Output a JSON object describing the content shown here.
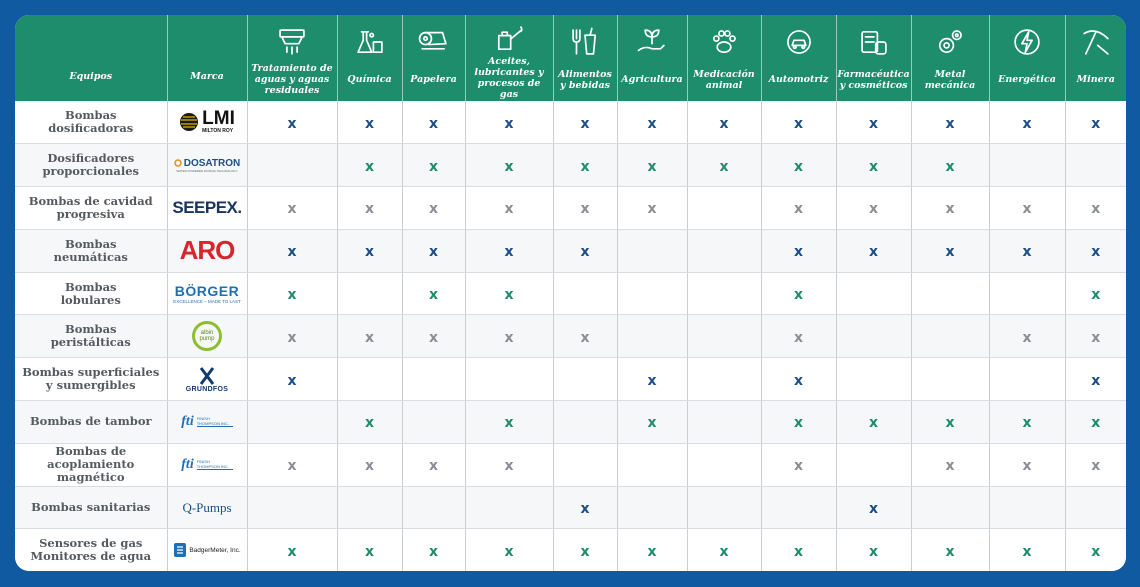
{
  "colors": {
    "blue": "#1c4f87",
    "green": "#1e8d6b",
    "gray": "#8a8f96",
    "header": "#1e8d6b",
    "frame": "#0f5aa1"
  },
  "header": {
    "equipos": "Equipos",
    "marca": "Marca",
    "columns": [
      {
        "label": "Tratamiento de aguas y aguas residuales",
        "icon": "water-treatment-icon"
      },
      {
        "label": "Química",
        "icon": "chemistry-flask-icon"
      },
      {
        "label": "Papelera",
        "icon": "paper-roll-icon"
      },
      {
        "label": "Aceites, lubricantes y procesos de gas",
        "icon": "oil-can-icon"
      },
      {
        "label": "Alimentos y bebidas",
        "icon": "food-drink-icon"
      },
      {
        "label": "Agricultura",
        "icon": "plant-hand-icon"
      },
      {
        "label": "Medicación animal",
        "icon": "paw-icon"
      },
      {
        "label": "Automotriz",
        "icon": "car-gear-icon"
      },
      {
        "label": "Farmacéutica y cosméticos",
        "icon": "pharma-icon"
      },
      {
        "label": "Metal mecánica",
        "icon": "gears-icon"
      },
      {
        "label": "Energética",
        "icon": "energy-bolt-icon"
      },
      {
        "label": "Minera",
        "icon": "pickaxe-icon"
      }
    ]
  },
  "mark_symbol": "x",
  "brands": {
    "lmi": {
      "main": "LMI",
      "sub": "MILTON ROY"
    },
    "dosatron": {
      "main": "DOSATRON",
      "sub": "WATER POWERED DOSING TECHNOLOGY"
    },
    "seepex": {
      "main": "SEEPEX."
    },
    "aro": {
      "main": "ARO"
    },
    "borger": {
      "main": "BÖRGER",
      "sub": "EXCELLENCE – MADE TO LAST"
    },
    "albin": {
      "main": "albin pump"
    },
    "grundfos": {
      "main": "GRUNDFOS"
    },
    "fti": {
      "main": "fti",
      "sub": "FINISH THOMPSON INC."
    },
    "qpumps": {
      "main": "Q-Pumps"
    },
    "badger": {
      "main": "BadgerMeter, Inc."
    }
  },
  "rows": [
    {
      "equipo": [
        "Bombas",
        "dosificadoras"
      ],
      "brand": "lmi",
      "color": "blue",
      "marks": [
        1,
        1,
        1,
        1,
        1,
        1,
        1,
        1,
        1,
        1,
        1,
        1
      ]
    },
    {
      "equipo": [
        "Dosificadores",
        "proporcionales"
      ],
      "brand": "dosatron",
      "color": "green",
      "marks": [
        0,
        1,
        1,
        1,
        1,
        1,
        1,
        1,
        1,
        1,
        0,
        0
      ]
    },
    {
      "equipo": [
        "Bombas de cavidad",
        "progresiva"
      ],
      "brand": "seepex",
      "color": "gray",
      "marks": [
        1,
        1,
        1,
        1,
        1,
        1,
        0,
        1,
        1,
        1,
        1,
        1
      ]
    },
    {
      "equipo": [
        "Bombas",
        "neumáticas"
      ],
      "brand": "aro",
      "color": "blue",
      "marks": [
        1,
        1,
        1,
        1,
        1,
        0,
        0,
        1,
        1,
        1,
        1,
        1
      ]
    },
    {
      "equipo": [
        "Bombas",
        "lobulares"
      ],
      "brand": "borger",
      "color": "green",
      "marks": [
        1,
        0,
        1,
        1,
        0,
        0,
        0,
        1,
        0,
        0,
        0,
        1
      ]
    },
    {
      "equipo": [
        "Bombas",
        "peristálticas"
      ],
      "brand": "albin",
      "color": "gray",
      "marks": [
        1,
        1,
        1,
        1,
        1,
        0,
        0,
        1,
        0,
        0,
        1,
        1
      ]
    },
    {
      "equipo": [
        "Bombas superficiales",
        "y sumergibles"
      ],
      "brand": "grundfos",
      "color": "blue",
      "marks": [
        1,
        0,
        0,
        0,
        0,
        1,
        0,
        1,
        0,
        0,
        0,
        1
      ]
    },
    {
      "equipo": [
        "Bombas de tambor"
      ],
      "brand": "fti",
      "color": "green",
      "marks": [
        0,
        1,
        0,
        1,
        0,
        1,
        0,
        1,
        1,
        1,
        1,
        1
      ]
    },
    {
      "equipo": [
        "Bombas de",
        "acoplamiento",
        "magnético"
      ],
      "brand": "fti",
      "color": "gray",
      "marks": [
        1,
        1,
        1,
        1,
        0,
        0,
        0,
        1,
        0,
        1,
        1,
        1
      ]
    },
    {
      "equipo": [
        "Bombas sanitarias"
      ],
      "brand": "qpumps",
      "color": "blue",
      "marks": [
        0,
        0,
        0,
        0,
        1,
        0,
        0,
        0,
        1,
        0,
        0,
        0
      ]
    },
    {
      "equipo": [
        "Sensores de gas",
        "Monitores de agua"
      ],
      "brand": "badger",
      "color": "green",
      "marks": [
        1,
        1,
        1,
        1,
        1,
        1,
        1,
        1,
        1,
        1,
        1,
        1
      ]
    }
  ]
}
